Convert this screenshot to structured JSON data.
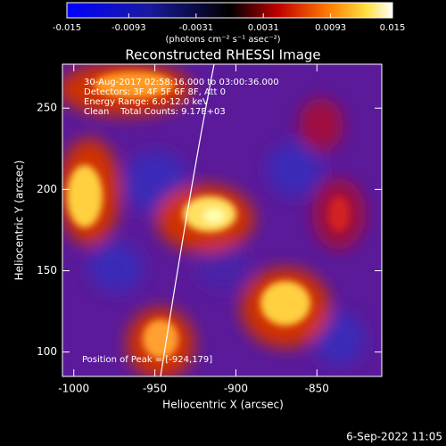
{
  "chart_data": {
    "type": "image",
    "title": "Reconstructed RHESSI Image",
    "xlabel": "Heliocentric X (arcsec)",
    "ylabel": "Heliocentric Y (arcsec)",
    "xlim": [
      -1007,
      -810
    ],
    "ylim": [
      85,
      277
    ],
    "xticks": [
      -1000,
      -950,
      -900,
      -850
    ],
    "yticks": [
      100,
      150,
      200,
      250
    ],
    "colorbar": {
      "label": "(photons cm⁻² s⁻¹ asec⁻²)",
      "lim": [
        -0.015,
        0.015
      ],
      "ticks": [
        -0.015,
        -0.0093,
        -0.0031,
        0.0031,
        0.0093,
        0.015
      ]
    },
    "annotations": [
      "30-Aug-2017 02:58:16.000 to 03:00:36.000",
      "Detectors: 3F 4F 5F 6F 8F, Att 0",
      "Energy Range: 6.0-12.0 keV",
      "Clean    Total Counts: 9.17E+03"
    ],
    "peak_label": "Position of Peak = [-924,179]",
    "timestamp": "6-Sep-2022 11:05"
  }
}
